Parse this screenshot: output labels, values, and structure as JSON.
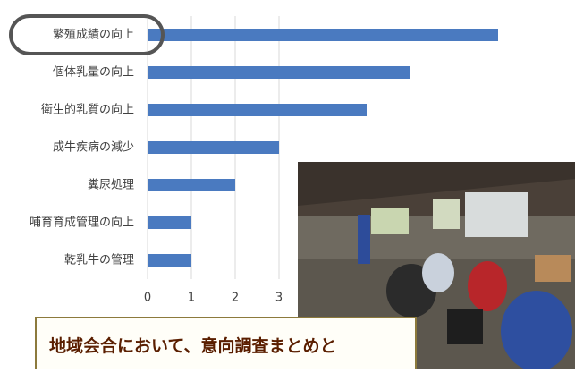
{
  "chart_data": {
    "type": "hbar",
    "categories": [
      "繁殖成績の向上",
      "個体乳量の向上",
      "衛生的乳質の向上",
      "成牛疾病の減少",
      "糞尿処理",
      "哺育育成管理の向上",
      "乾乳牛の管理"
    ],
    "values": [
      8,
      6,
      5,
      3,
      2,
      1,
      1
    ],
    "color": "#4a7ac0",
    "xlim": [
      0,
      9
    ],
    "xticks": [
      0,
      1,
      2,
      3
    ],
    "grid": true,
    "annotation": "地域会合において、意向調査まとめと"
  }
}
